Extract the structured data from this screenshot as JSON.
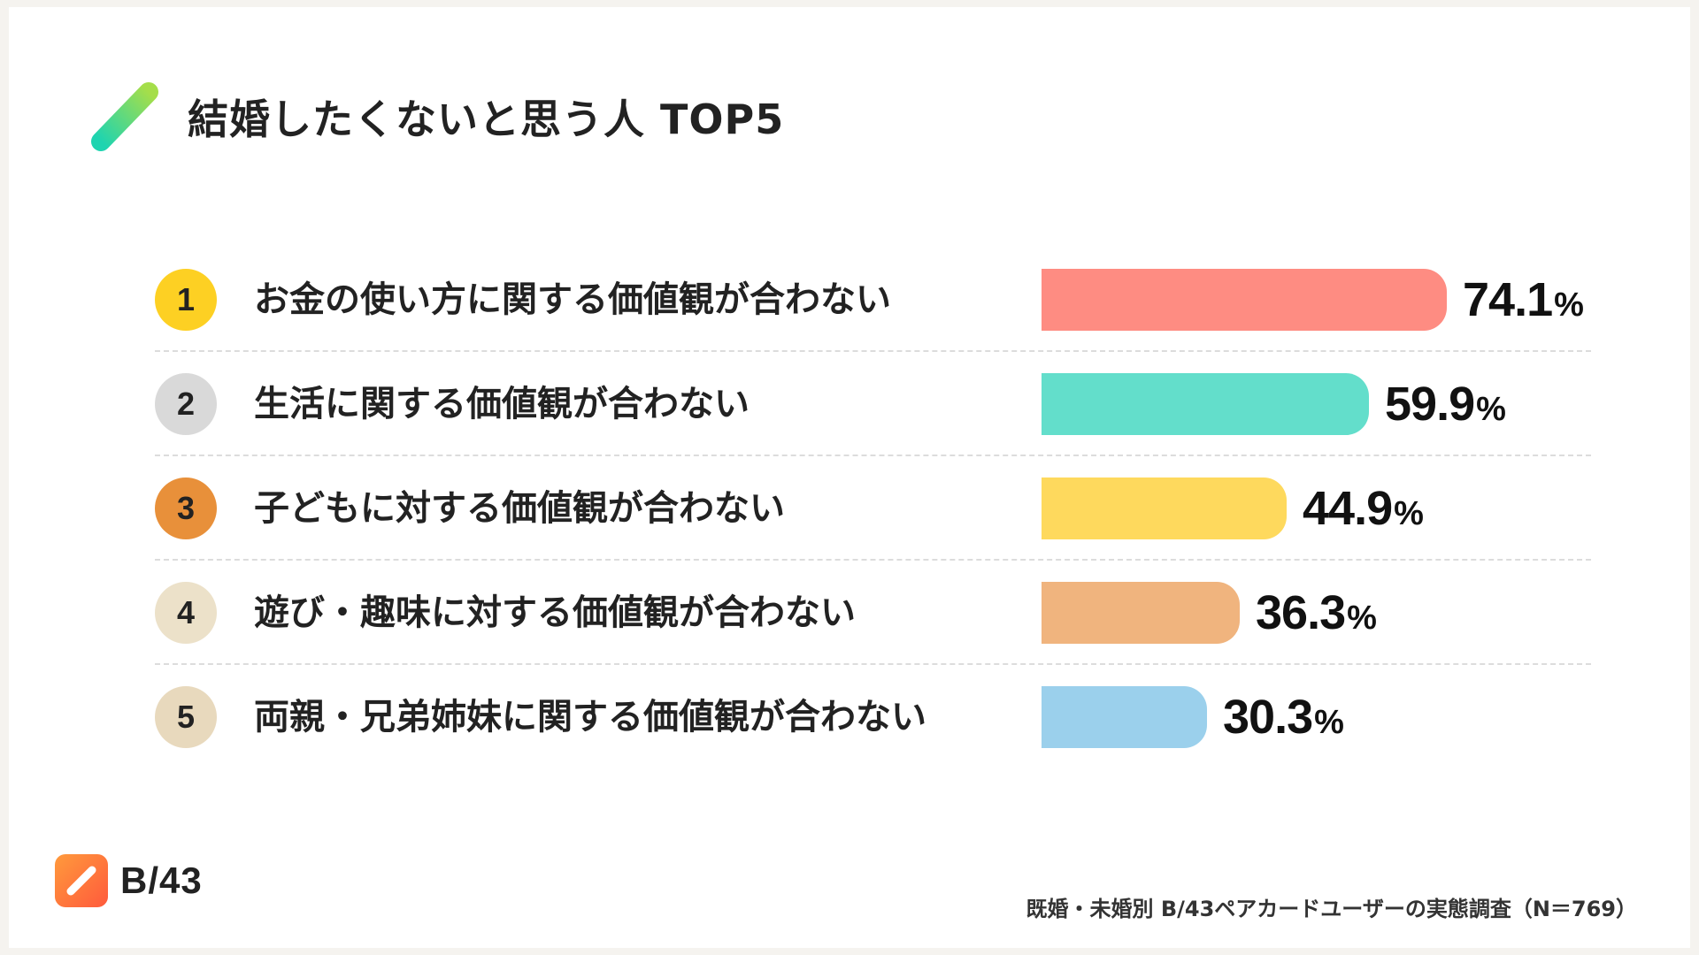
{
  "title": "結婚したくないと思う人 TOP5",
  "brand": {
    "name": "B/43"
  },
  "source": "既婚・未婚別 B/43ペアカードユーザーの実態調査（N＝769）",
  "colors": {
    "title_mark_start": "#1ed4b0",
    "title_mark_end": "#a5de4a",
    "brand_accent": "#ff6a3c"
  },
  "chart_data": {
    "type": "bar",
    "orientation": "horizontal",
    "title": "結婚したくないと思う人 TOP5",
    "unit": "%",
    "categories": [
      "お金の使い方に関する価値観が合わない",
      "生活に関する価値観が合わない",
      "子どもに対する価値観が合わない",
      "遊び・趣味に対する価値観が合わない",
      "両親・兄弟姉妹に関する価値観が合わない"
    ],
    "values": [
      74.1,
      59.9,
      44.9,
      36.3,
      30.3
    ],
    "value_labels": [
      "74.1",
      "59.9",
      "44.9",
      "36.3",
      "30.3"
    ],
    "ranks": [
      "1",
      "2",
      "3",
      "4",
      "5"
    ],
    "rank_colors": [
      "#fdd023",
      "#d9d9d9",
      "#e8903a",
      "#ece1c9",
      "#e8d9bd"
    ],
    "bar_colors": [
      "#fe8c82",
      "#63decb",
      "#fed95d",
      "#f0b47e",
      "#9bd0ec"
    ],
    "xlim": [
      0,
      100
    ],
    "grid": false,
    "legend": "none"
  }
}
